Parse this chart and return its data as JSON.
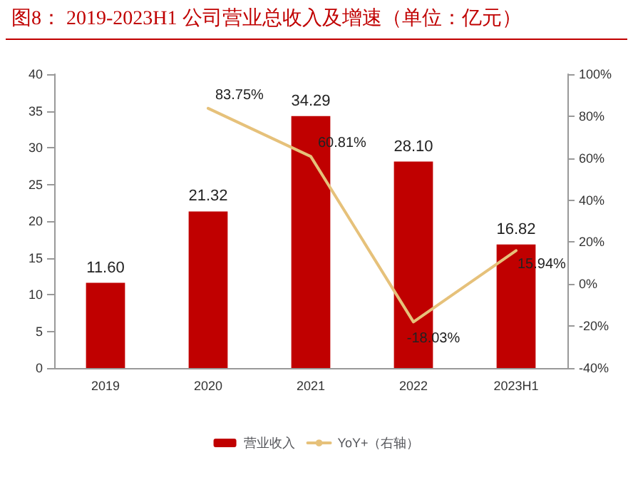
{
  "chart_data": {
    "type": "bar",
    "title": "图8：  2019-2023H1 公司营业总收入及增速（单位：亿元）",
    "categories": [
      "2019",
      "2020",
      "2021",
      "2022",
      "2023H1"
    ],
    "series": [
      {
        "name": "营业收入",
        "color": "#c00000",
        "values": [
          11.6,
          21.32,
          34.29,
          28.1,
          16.82
        ],
        "value_labels": [
          "11.60",
          "21.32",
          "34.29",
          "28.10",
          "16.82"
        ]
      },
      {
        "name": "YoY+（右轴）",
        "type": "line",
        "axis": "y2",
        "color": "#e6c17a",
        "values": [
          null,
          83.75,
          60.81,
          -18.03,
          15.94
        ],
        "value_labels": [
          null,
          "83.75%",
          "60.81%",
          "-18.03%",
          "15.94%"
        ]
      }
    ],
    "ylim": [
      0,
      40
    ],
    "yticks": [
      0,
      5,
      10,
      15,
      20,
      25,
      30,
      35,
      40
    ],
    "y2lim": [
      -40,
      100
    ],
    "y2ticks": [
      {
        "value": -40,
        "label": "-40%"
      },
      {
        "value": -20,
        "label": "-20%"
      },
      {
        "value": 0,
        "label": "0%"
      },
      {
        "value": 20,
        "label": "20%"
      },
      {
        "value": 40,
        "label": "40%"
      },
      {
        "value": 60,
        "label": "60%"
      },
      {
        "value": 80,
        "label": "80%"
      },
      {
        "value": 100,
        "label": "100%"
      }
    ],
    "legend": "bottom",
    "grid": false,
    "marker": "none",
    "line_style": "solid"
  }
}
